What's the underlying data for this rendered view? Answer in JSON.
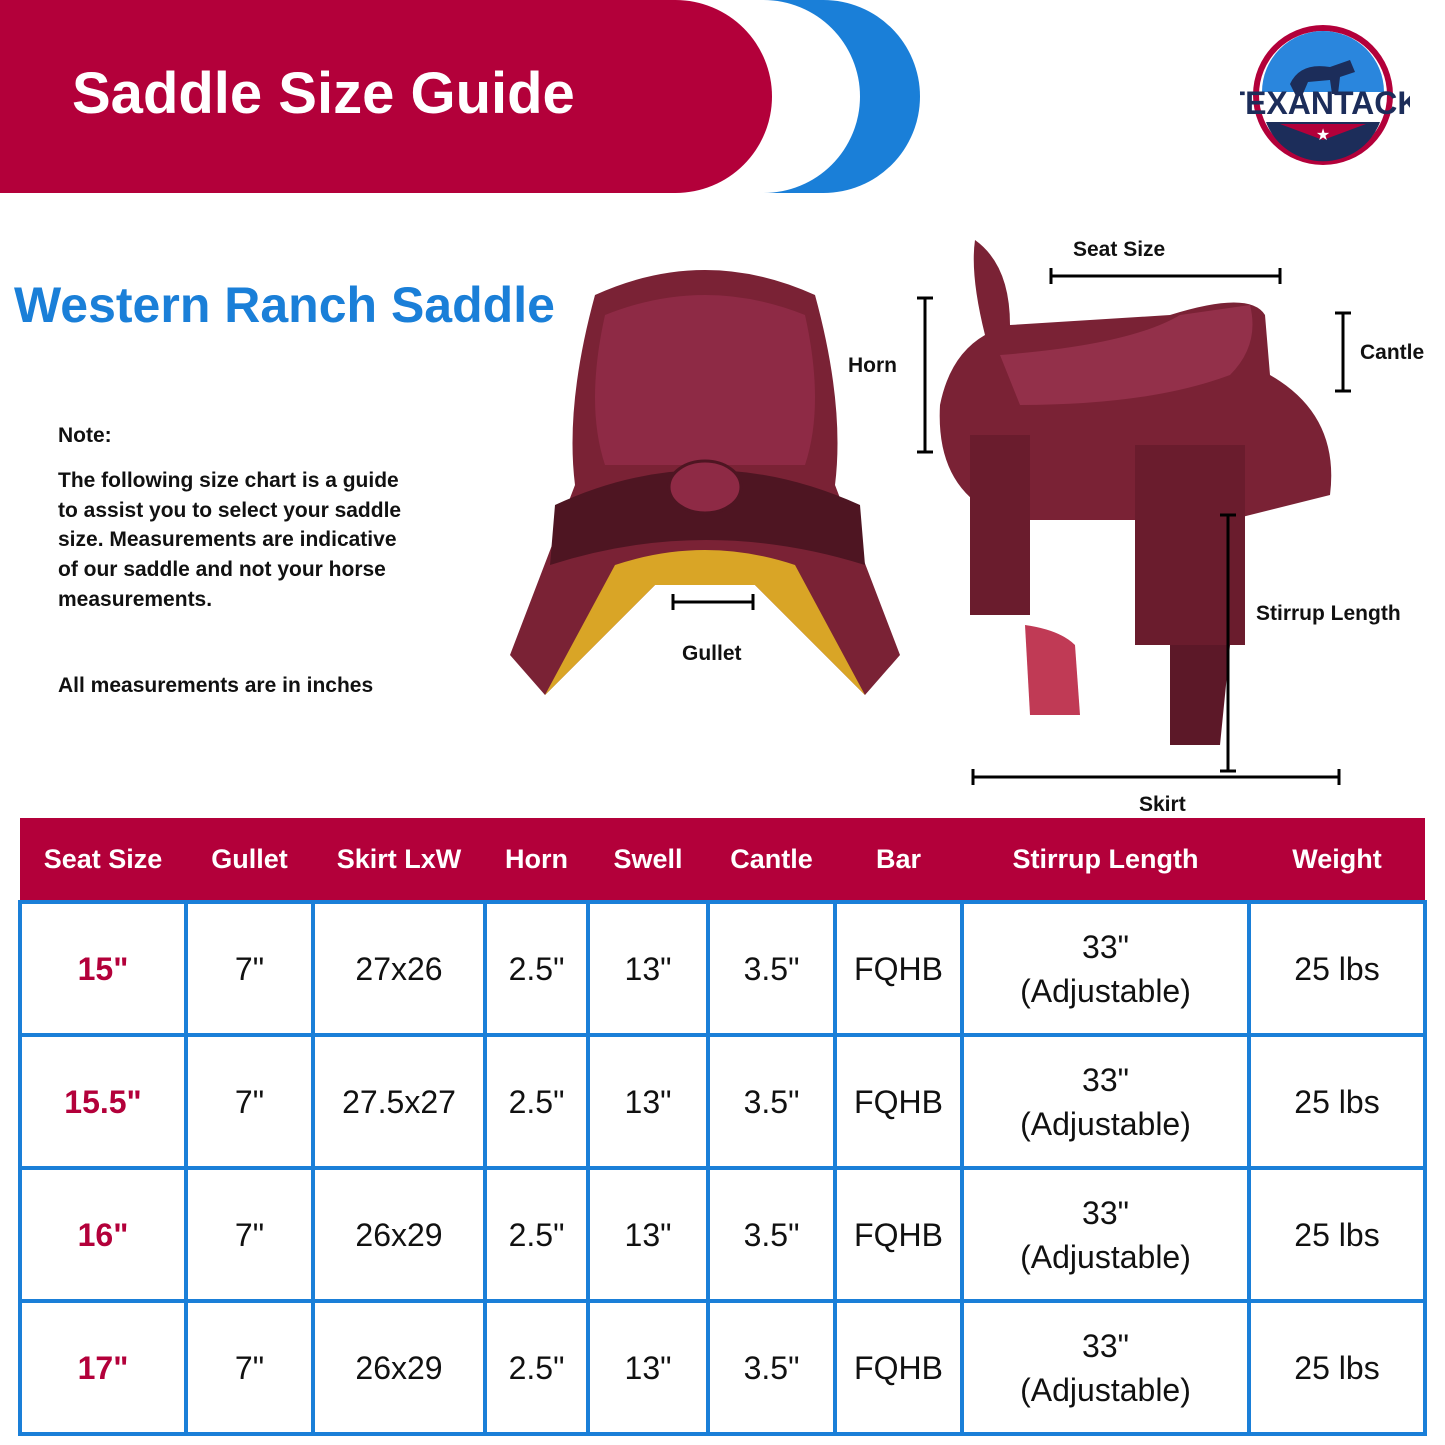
{
  "header": {
    "title": "Saddle Size Guide",
    "brand": "TEXANTACK"
  },
  "colors": {
    "brand_red": "#b3003a",
    "brand_blue": "#1a7fd8"
  },
  "subtitle": "Western Ranch Saddle",
  "note": {
    "label": "Note:",
    "text": "The following size chart is a guide to assist you to select your saddle size. Measurements are indicative of our saddle and not your horse measurements.",
    "units": "All measurements are in inches"
  },
  "diagram_labels": {
    "gullet": "Gullet",
    "horn": "Horn",
    "seat_size": "Seat Size",
    "cantle": "Cantle",
    "stirrup_length": "Stirrup Length",
    "skirt": "Skirt"
  },
  "table": {
    "headers": [
      "Seat Size",
      "Gullet",
      "Skirt LxW",
      "Horn",
      "Swell",
      "Cantle",
      "Bar",
      "Stirrup Length",
      "Weight"
    ],
    "rows": [
      {
        "seat": "15\"",
        "gullet": "7\"",
        "skirt": "27x26",
        "horn": "2.5\"",
        "swell": "13\"",
        "cantle": "3.5\"",
        "bar": "FQHB",
        "stirrup": "33\"",
        "stirrup_note": "(Adjustable)",
        "weight": "25 lbs"
      },
      {
        "seat": "15.5\"",
        "gullet": "7\"",
        "skirt": "27.5x27",
        "horn": "2.5\"",
        "swell": "13\"",
        "cantle": "3.5\"",
        "bar": "FQHB",
        "stirrup": "33\"",
        "stirrup_note": "(Adjustable)",
        "weight": "25 lbs"
      },
      {
        "seat": "16\"",
        "gullet": "7\"",
        "skirt": "26x29",
        "horn": "2.5\"",
        "swell": "13\"",
        "cantle": "3.5\"",
        "bar": "FQHB",
        "stirrup": "33\"",
        "stirrup_note": "(Adjustable)",
        "weight": "25 lbs"
      },
      {
        "seat": "17\"",
        "gullet": "7\"",
        "skirt": "26x29",
        "horn": "2.5\"",
        "swell": "13\"",
        "cantle": "3.5\"",
        "bar": "FQHB",
        "stirrup": "33\"",
        "stirrup_note": "(Adjustable)",
        "weight": "25 lbs"
      }
    ]
  }
}
